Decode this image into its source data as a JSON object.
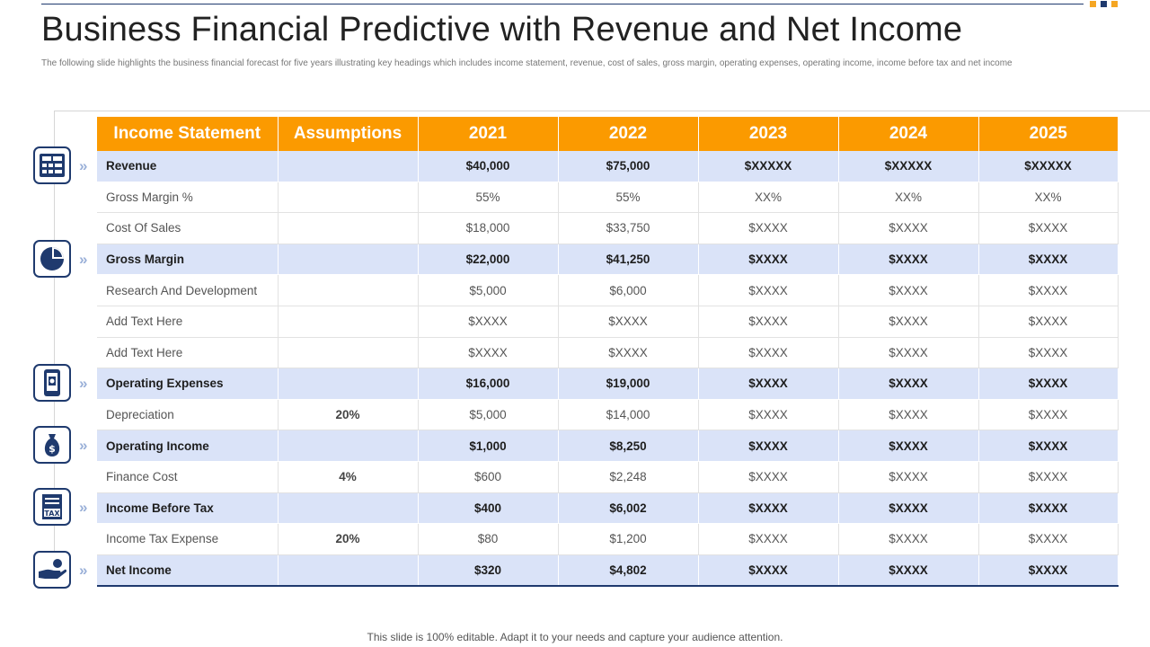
{
  "header": {
    "title": "Business Financial Predictive with Revenue and Net Income",
    "subtitle": "The following slide highlights the business financial forecast for five years illustrating key headings which includes income statement, revenue, cost of sales, gross margin, operating expenses, operating income, income before tax and net income"
  },
  "colors": {
    "accent": "#fb9a00",
    "navy": "#1f3a6e",
    "highlight_row": "#dae3f8",
    "square_gold": "#f5a623",
    "square_navy": "#1f3a6e"
  },
  "table": {
    "columns": [
      "Income Statement",
      "Assumptions",
      "2021",
      "2022",
      "2023",
      "2024",
      "2025"
    ],
    "rows": [
      {
        "label": "Revenue",
        "assumption": "",
        "values": [
          "$40,000",
          "$75,000",
          "$XXXXX",
          "$XXXXX",
          "$XXXXX"
        ],
        "highlight": true
      },
      {
        "label": "Gross Margin %",
        "assumption": "",
        "values": [
          "55%",
          "55%",
          "XX%",
          "XX%",
          "XX%"
        ],
        "highlight": false
      },
      {
        "label": "Cost Of Sales",
        "assumption": "",
        "values": [
          "$18,000",
          "$33,750",
          "$XXXX",
          "$XXXX",
          "$XXXX"
        ],
        "highlight": false
      },
      {
        "label": "Gross  Margin",
        "assumption": "",
        "values": [
          "$22,000",
          "$41,250",
          "$XXXX",
          "$XXXX",
          "$XXXX"
        ],
        "highlight": true
      },
      {
        "label": "Research And Development",
        "assumption": "",
        "values": [
          "$5,000",
          "$6,000",
          "$XXXX",
          "$XXXX",
          "$XXXX"
        ],
        "highlight": false
      },
      {
        "label": "Add Text Here",
        "assumption": "",
        "values": [
          "$XXXX",
          "$XXXX",
          "$XXXX",
          "$XXXX",
          "$XXXX"
        ],
        "highlight": false
      },
      {
        "label": "Add Text Here",
        "assumption": "",
        "values": [
          "$XXXX",
          "$XXXX",
          "$XXXX",
          "$XXXX",
          "$XXXX"
        ],
        "highlight": false
      },
      {
        "label": "Operating Expenses",
        "assumption": "",
        "values": [
          "$16,000",
          "$19,000",
          "$XXXX",
          "$XXXX",
          "$XXXX"
        ],
        "highlight": true
      },
      {
        "label": "Depreciation",
        "assumption": "20%",
        "values": [
          "$5,000",
          "$14,000",
          "$XXXX",
          "$XXXX",
          "$XXXX"
        ],
        "highlight": false
      },
      {
        "label": "Operating Income",
        "assumption": "",
        "values": [
          "$1,000",
          "$8,250",
          "$XXXX",
          "$XXXX",
          "$XXXX"
        ],
        "highlight": true
      },
      {
        "label": "Finance Cost",
        "assumption": "4%",
        "values": [
          "$600",
          "$2,248",
          "$XXXX",
          "$XXXX",
          "$XXXX"
        ],
        "highlight": false
      },
      {
        "label": "Income Before Tax",
        "assumption": "",
        "values": [
          "$400",
          "$6,002",
          "$XXXX",
          "$XXXX",
          "$XXXX"
        ],
        "highlight": true
      },
      {
        "label": "Income Tax Expense",
        "assumption": "20%",
        "values": [
          "$80",
          "$1,200",
          "$XXXX",
          "$XXXX",
          "$XXXX"
        ],
        "highlight": false
      },
      {
        "label": "Net Income",
        "assumption": "",
        "values": [
          "$320",
          "$4,802",
          "$XXXX",
          "$XXXX",
          "$XXXX"
        ],
        "highlight": true
      }
    ]
  },
  "side_icons": [
    {
      "name": "calculator-icon",
      "chevron": "»"
    },
    {
      "name": "pie-chart-icon",
      "chevron": "»"
    },
    {
      "name": "mobile-payment-icon",
      "chevron": "»"
    },
    {
      "name": "money-bag-icon",
      "chevron": "»"
    },
    {
      "name": "tax-document-icon",
      "chevron": "»",
      "badge": "TAX"
    },
    {
      "name": "hand-coin-icon",
      "chevron": "»"
    }
  ],
  "footer": {
    "text": "This slide is 100% editable. Adapt it to your  needs and capture your audience attention."
  }
}
